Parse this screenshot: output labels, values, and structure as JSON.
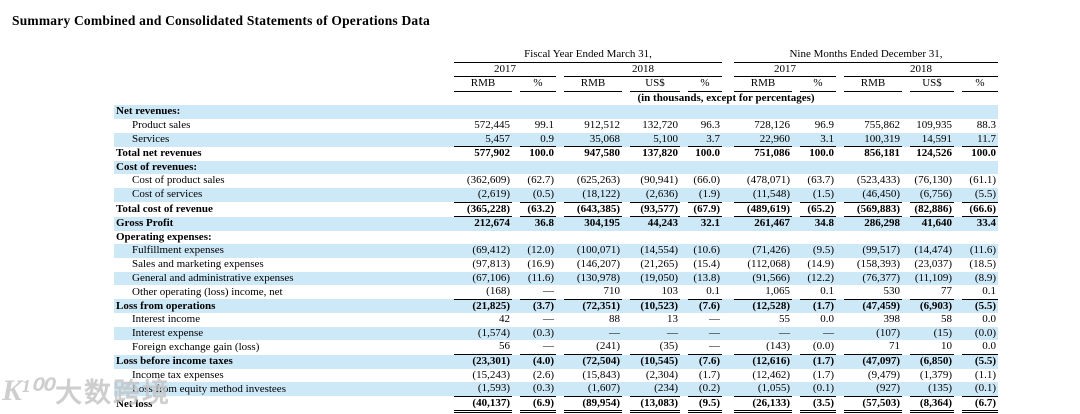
{
  "page_title": "Summary Combined and Consolidated Statements of Operations Data",
  "watermark": {
    "logo": "K¹⁰⁰",
    "text": "大数跨境"
  },
  "colors": {
    "shaded_row": "#cde8f7",
    "text": "#000000",
    "background": "#ffffff",
    "watermark": "#c3c3c3"
  },
  "table": {
    "note": "(in thousands, except for percentages)",
    "periods": [
      {
        "label": "Fiscal Year Ended March 31,",
        "years": [
          {
            "label": "2017",
            "cols": [
              "RMB",
              "%"
            ]
          },
          {
            "label": "2018",
            "cols": [
              "RMB",
              "US$",
              "%"
            ]
          }
        ]
      },
      {
        "label": "Nine Months Ended December 31,",
        "years": [
          {
            "label": "2017",
            "cols": [
              "RMB",
              "%"
            ]
          },
          {
            "label": "2018",
            "cols": [
              "RMB",
              "US$",
              "%"
            ]
          }
        ]
      }
    ],
    "rows": [
      {
        "label": "Net revenues:",
        "bold": true,
        "indent": 0,
        "shaded": true,
        "rule": "none",
        "values": [
          "",
          "",
          "",
          "",
          "",
          "",
          "",
          "",
          "",
          ""
        ]
      },
      {
        "label": "Product sales",
        "bold": false,
        "indent": 1,
        "shaded": false,
        "rule": "none",
        "values": [
          "572,445",
          "99.1",
          "912,512",
          "132,720",
          "96.3",
          "728,126",
          "96.9",
          "755,862",
          "109,935",
          "88.3"
        ]
      },
      {
        "label": "Services",
        "bold": false,
        "indent": 1,
        "shaded": true,
        "rule": "single",
        "values": [
          "5,457",
          "0.9",
          "35,068",
          "5,100",
          "3.7",
          "22,960",
          "3.1",
          "100,319",
          "14,591",
          "11.7"
        ]
      },
      {
        "label": "Total net revenues",
        "bold": true,
        "indent": 0,
        "shaded": false,
        "rule": "none",
        "values": [
          "577,902",
          "100.0",
          "947,580",
          "137,820",
          "100.0",
          "751,086",
          "100.0",
          "856,181",
          "124,526",
          "100.0"
        ]
      },
      {
        "label": "Cost of revenues:",
        "bold": true,
        "indent": 0,
        "shaded": true,
        "rule": "none",
        "values": [
          "",
          "",
          "",
          "",
          "",
          "",
          "",
          "",
          "",
          ""
        ]
      },
      {
        "label": "Cost of product sales",
        "bold": false,
        "indent": 1,
        "shaded": false,
        "rule": "none",
        "values": [
          "(362,609)",
          "(62.7)",
          "(625,263)",
          "(90,941)",
          "(66.0)",
          "(478,071)",
          "(63.7)",
          "(523,433)",
          "(76,130)",
          "(61.1)"
        ]
      },
      {
        "label": "Cost of services",
        "bold": false,
        "indent": 1,
        "shaded": true,
        "rule": "single",
        "values": [
          "(2,619)",
          "(0.5)",
          "(18,122)",
          "(2,636)",
          "(1.9)",
          "(11,548)",
          "(1.5)",
          "(46,450)",
          "(6,756)",
          "(5.5)"
        ]
      },
      {
        "label": "Total cost of revenue",
        "bold": true,
        "indent": 0,
        "shaded": false,
        "rule": "single",
        "values": [
          "(365,228)",
          "(63.2)",
          "(643,385)",
          "(93,577)",
          "(67.9)",
          "(489,619)",
          "(65.2)",
          "(569,883)",
          "(82,886)",
          "(66.6)"
        ]
      },
      {
        "label": "Gross Profit",
        "bold": true,
        "indent": 0,
        "shaded": true,
        "rule": "none",
        "values": [
          "212,674",
          "36.8",
          "304,195",
          "44,243",
          "32.1",
          "261,467",
          "34.8",
          "286,298",
          "41,640",
          "33.4"
        ]
      },
      {
        "label": "Operating expenses:",
        "bold": true,
        "indent": 0,
        "shaded": false,
        "rule": "none",
        "values": [
          "",
          "",
          "",
          "",
          "",
          "",
          "",
          "",
          "",
          ""
        ]
      },
      {
        "label": "Fulfillment expenses",
        "bold": false,
        "indent": 1,
        "shaded": true,
        "rule": "none",
        "values": [
          "(69,412)",
          "(12.0)",
          "(100,071)",
          "(14,554)",
          "(10.6)",
          "(71,426)",
          "(9.5)",
          "(99,517)",
          "(14,474)",
          "(11.6)"
        ]
      },
      {
        "label": "Sales and marketing expenses",
        "bold": false,
        "indent": 1,
        "shaded": false,
        "rule": "none",
        "values": [
          "(97,813)",
          "(16.9)",
          "(146,207)",
          "(21,265)",
          "(15.4)",
          "(112,068)",
          "(14.9)",
          "(158,393)",
          "(23,037)",
          "(18.5)"
        ]
      },
      {
        "label": "General and administrative expenses",
        "bold": false,
        "indent": 1,
        "shaded": true,
        "rule": "none",
        "values": [
          "(67,106)",
          "(11.6)",
          "(130,978)",
          "(19,050)",
          "(13.8)",
          "(91,566)",
          "(12.2)",
          "(76,377)",
          "(11,109)",
          "(8.9)"
        ]
      },
      {
        "label": "Other operating (loss) income, net",
        "bold": false,
        "indent": 1,
        "shaded": false,
        "rule": "single",
        "values": [
          "(168)",
          "—",
          "710",
          "103",
          "0.1",
          "1,065",
          "0.1",
          "530",
          "77",
          "0.1"
        ]
      },
      {
        "label": "Loss from operations",
        "bold": true,
        "indent": 0,
        "shaded": true,
        "rule": "none",
        "values": [
          "(21,825)",
          "(3.7)",
          "(72,351)",
          "(10,523)",
          "(7.6)",
          "(12,528)",
          "(1.7)",
          "(47,459)",
          "(6,903)",
          "(5.5)"
        ]
      },
      {
        "label": "Interest income",
        "bold": false,
        "indent": 1,
        "shaded": false,
        "rule": "none",
        "values": [
          "42",
          "—",
          "88",
          "13",
          "—",
          "55",
          "0.0",
          "398",
          "58",
          "0.0"
        ]
      },
      {
        "label": "Interest expense",
        "bold": false,
        "indent": 1,
        "shaded": true,
        "rule": "none",
        "values": [
          "(1,574)",
          "(0.3)",
          "—",
          "—",
          "—",
          "—",
          "—",
          "(107)",
          "(15)",
          "(0.0)"
        ]
      },
      {
        "label": "Foreign exchange gain (loss)",
        "bold": false,
        "indent": 1,
        "shaded": false,
        "rule": "single",
        "values": [
          "56",
          "—",
          "(241)",
          "(35)",
          "—",
          "(143)",
          "(0.0)",
          "71",
          "10",
          "0.0"
        ]
      },
      {
        "label": "Loss before income taxes",
        "bold": true,
        "indent": 0,
        "shaded": true,
        "rule": "none",
        "values": [
          "(23,301)",
          "(4.0)",
          "(72,504)",
          "(10,545)",
          "(7.6)",
          "(12,616)",
          "(1.7)",
          "(47,097)",
          "(6,850)",
          "(5.5)"
        ]
      },
      {
        "label": "Income tax expenses",
        "bold": false,
        "indent": 1,
        "shaded": false,
        "rule": "none",
        "values": [
          "(15,243)",
          "(2.6)",
          "(15,843)",
          "(2,304)",
          "(1.7)",
          "(12,462)",
          "(1.7)",
          "(9,479)",
          "(1,379)",
          "(1.1)"
        ]
      },
      {
        "label": "Loss from equity method investees",
        "bold": false,
        "indent": 1,
        "shaded": true,
        "rule": "single",
        "values": [
          "(1,593)",
          "(0.3)",
          "(1,607)",
          "(234)",
          "(0.2)",
          "(1,055)",
          "(0.1)",
          "(927)",
          "(135)",
          "(0.1)"
        ]
      },
      {
        "label": "Net loss",
        "bold": true,
        "indent": 0,
        "shaded": false,
        "rule": "double",
        "values": [
          "(40,137)",
          "(6.9)",
          "(89,954)",
          "(13,083)",
          "(9.5)",
          "(26,133)",
          "(3.5)",
          "(57,503)",
          "(8,364)",
          "(6.7)"
        ]
      }
    ]
  }
}
